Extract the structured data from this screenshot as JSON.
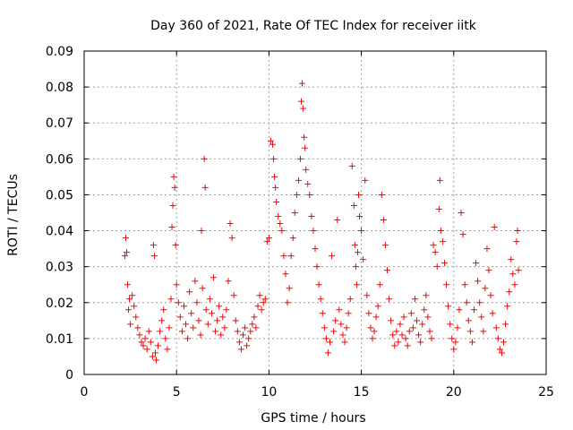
{
  "chart_data": {
    "type": "scatter",
    "title": "Day 360 of 2021, Rate Of TEC Index for receiver iitk",
    "xlabel": "GPS time / hours",
    "ylabel": "ROTI / TECUs",
    "xlim": [
      0,
      25
    ],
    "ylim": [
      0,
      0.09
    ],
    "x_ticks": [
      0,
      5,
      10,
      15,
      20,
      25
    ],
    "x_tick_labels": [
      "0",
      "5",
      "10",
      "15",
      "20",
      "25"
    ],
    "y_ticks": [
      0,
      0.01,
      0.02,
      0.03,
      0.04,
      0.05,
      0.06,
      0.07,
      0.08,
      0.09
    ],
    "y_tick_labels": [
      "0",
      "0.01",
      "0.02",
      "0.03",
      "0.04",
      "0.05",
      "0.06",
      "0.07",
      "0.08",
      "0.09"
    ],
    "grid": true,
    "marker": "plus",
    "color": "#ff0000",
    "series": [
      {
        "points": [
          [
            2.2,
            0.033
          ],
          [
            2.25,
            0.038
          ],
          [
            2.3,
            0.034
          ],
          [
            2.35,
            0.025
          ],
          [
            2.4,
            0.018
          ],
          [
            2.45,
            0.021
          ],
          [
            2.5,
            0.014
          ],
          [
            2.6,
            0.022
          ],
          [
            2.7,
            0.019
          ],
          [
            2.8,
            0.016
          ],
          [
            2.9,
            0.013
          ],
          [
            3.0,
            0.011
          ],
          [
            3.1,
            0.009
          ],
          [
            3.2,
            0.008
          ],
          [
            3.3,
            0.01
          ],
          [
            3.4,
            0.007
          ],
          [
            3.5,
            0.012
          ],
          [
            3.6,
            0.009
          ],
          [
            3.7,
            0.005
          ],
          [
            3.75,
            0.036
          ],
          [
            3.8,
            0.033
          ],
          [
            3.85,
            0.006
          ],
          [
            3.9,
            0.004
          ],
          [
            4.0,
            0.008
          ],
          [
            4.1,
            0.012
          ],
          [
            4.2,
            0.015
          ],
          [
            4.3,
            0.018
          ],
          [
            4.4,
            0.01
          ],
          [
            4.5,
            0.007
          ],
          [
            4.6,
            0.013
          ],
          [
            4.7,
            0.021
          ],
          [
            4.75,
            0.041
          ],
          [
            4.8,
            0.047
          ],
          [
            4.85,
            0.055
          ],
          [
            4.9,
            0.052
          ],
          [
            4.95,
            0.036
          ],
          [
            5.0,
            0.025
          ],
          [
            5.1,
            0.02
          ],
          [
            5.2,
            0.016
          ],
          [
            5.3,
            0.012
          ],
          [
            5.4,
            0.019
          ],
          [
            5.5,
            0.014
          ],
          [
            5.6,
            0.01
          ],
          [
            5.7,
            0.023
          ],
          [
            5.8,
            0.017
          ],
          [
            5.9,
            0.013
          ],
          [
            6.0,
            0.026
          ],
          [
            6.1,
            0.02
          ],
          [
            6.2,
            0.015
          ],
          [
            6.3,
            0.011
          ],
          [
            6.35,
            0.04
          ],
          [
            6.4,
            0.024
          ],
          [
            6.5,
            0.06
          ],
          [
            6.55,
            0.052
          ],
          [
            6.6,
            0.018
          ],
          [
            6.7,
            0.014
          ],
          [
            6.8,
            0.021
          ],
          [
            6.9,
            0.017
          ],
          [
            7.0,
            0.027
          ],
          [
            7.1,
            0.012
          ],
          [
            7.2,
            0.015
          ],
          [
            7.3,
            0.019
          ],
          [
            7.4,
            0.011
          ],
          [
            7.5,
            0.016
          ],
          [
            7.6,
            0.013
          ],
          [
            7.7,
            0.018
          ],
          [
            7.8,
            0.026
          ],
          [
            7.9,
            0.042
          ],
          [
            8.0,
            0.038
          ],
          [
            8.1,
            0.022
          ],
          [
            8.2,
            0.015
          ],
          [
            8.3,
            0.012
          ],
          [
            8.4,
            0.009
          ],
          [
            8.5,
            0.007
          ],
          [
            8.6,
            0.011
          ],
          [
            8.7,
            0.013
          ],
          [
            8.8,
            0.008
          ],
          [
            8.9,
            0.01
          ],
          [
            9.0,
            0.012
          ],
          [
            9.1,
            0.014
          ],
          [
            9.2,
            0.016
          ],
          [
            9.3,
            0.013
          ],
          [
            9.4,
            0.019
          ],
          [
            9.5,
            0.022
          ],
          [
            9.6,
            0.018
          ],
          [
            9.7,
            0.02
          ],
          [
            9.8,
            0.021
          ],
          [
            9.9,
            0.037
          ],
          [
            10.0,
            0.038
          ],
          [
            10.1,
            0.065
          ],
          [
            10.2,
            0.064
          ],
          [
            10.25,
            0.06
          ],
          [
            10.3,
            0.055
          ],
          [
            10.35,
            0.052
          ],
          [
            10.4,
            0.048
          ],
          [
            10.5,
            0.044
          ],
          [
            10.6,
            0.042
          ],
          [
            10.7,
            0.04
          ],
          [
            10.8,
            0.033
          ],
          [
            10.9,
            0.028
          ],
          [
            11.0,
            0.02
          ],
          [
            11.1,
            0.024
          ],
          [
            11.2,
            0.033
          ],
          [
            11.3,
            0.038
          ],
          [
            11.4,
            0.045
          ],
          [
            11.5,
            0.05
          ],
          [
            11.6,
            0.054
          ],
          [
            11.7,
            0.06
          ],
          [
            11.75,
            0.076
          ],
          [
            11.8,
            0.081
          ],
          [
            11.85,
            0.074
          ],
          [
            11.9,
            0.066
          ],
          [
            11.95,
            0.063
          ],
          [
            12.0,
            0.057
          ],
          [
            12.1,
            0.053
          ],
          [
            12.2,
            0.05
          ],
          [
            12.3,
            0.044
          ],
          [
            12.4,
            0.04
          ],
          [
            12.5,
            0.035
          ],
          [
            12.6,
            0.03
          ],
          [
            12.7,
            0.025
          ],
          [
            12.8,
            0.021
          ],
          [
            12.9,
            0.017
          ],
          [
            13.0,
            0.013
          ],
          [
            13.1,
            0.01
          ],
          [
            13.2,
            0.006
          ],
          [
            13.3,
            0.009
          ],
          [
            13.4,
            0.033
          ],
          [
            13.5,
            0.012
          ],
          [
            13.6,
            0.015
          ],
          [
            13.7,
            0.043
          ],
          [
            13.8,
            0.018
          ],
          [
            13.9,
            0.014
          ],
          [
            14.0,
            0.011
          ],
          [
            14.1,
            0.009
          ],
          [
            14.2,
            0.013
          ],
          [
            14.3,
            0.017
          ],
          [
            14.4,
            0.021
          ],
          [
            14.5,
            0.058
          ],
          [
            14.6,
            0.047
          ],
          [
            14.65,
            0.036
          ],
          [
            14.7,
            0.03
          ],
          [
            14.75,
            0.025
          ],
          [
            14.8,
            0.034
          ],
          [
            14.85,
            0.05
          ],
          [
            14.9,
            0.044
          ],
          [
            15.0,
            0.04
          ],
          [
            15.1,
            0.032
          ],
          [
            15.2,
            0.054
          ],
          [
            15.3,
            0.022
          ],
          [
            15.4,
            0.017
          ],
          [
            15.5,
            0.013
          ],
          [
            15.6,
            0.01
          ],
          [
            15.7,
            0.012
          ],
          [
            15.8,
            0.016
          ],
          [
            15.9,
            0.019
          ],
          [
            16.0,
            0.025
          ],
          [
            16.1,
            0.05
          ],
          [
            16.2,
            0.043
          ],
          [
            16.3,
            0.036
          ],
          [
            16.4,
            0.029
          ],
          [
            16.5,
            0.021
          ],
          [
            16.6,
            0.015
          ],
          [
            16.7,
            0.011
          ],
          [
            16.8,
            0.008
          ],
          [
            16.9,
            0.012
          ],
          [
            17.0,
            0.009
          ],
          [
            17.1,
            0.014
          ],
          [
            17.2,
            0.011
          ],
          [
            17.3,
            0.016
          ],
          [
            17.4,
            0.01
          ],
          [
            17.5,
            0.008
          ],
          [
            17.6,
            0.012
          ],
          [
            17.7,
            0.017
          ],
          [
            17.8,
            0.013
          ],
          [
            17.9,
            0.021
          ],
          [
            18.0,
            0.015
          ],
          [
            18.1,
            0.011
          ],
          [
            18.2,
            0.009
          ],
          [
            18.3,
            0.014
          ],
          [
            18.4,
            0.018
          ],
          [
            18.5,
            0.022
          ],
          [
            18.6,
            0.016
          ],
          [
            18.7,
            0.012
          ],
          [
            18.8,
            0.01
          ],
          [
            18.9,
            0.036
          ],
          [
            19.0,
            0.034
          ],
          [
            19.1,
            0.03
          ],
          [
            19.2,
            0.046
          ],
          [
            19.25,
            0.054
          ],
          [
            19.3,
            0.04
          ],
          [
            19.4,
            0.037
          ],
          [
            19.5,
            0.031
          ],
          [
            19.6,
            0.025
          ],
          [
            19.7,
            0.019
          ],
          [
            19.8,
            0.014
          ],
          [
            19.9,
            0.01
          ],
          [
            20.0,
            0.007
          ],
          [
            20.1,
            0.009
          ],
          [
            20.2,
            0.013
          ],
          [
            20.3,
            0.018
          ],
          [
            20.4,
            0.045
          ],
          [
            20.5,
            0.039
          ],
          [
            20.6,
            0.025
          ],
          [
            20.7,
            0.02
          ],
          [
            20.8,
            0.015
          ],
          [
            20.9,
            0.012
          ],
          [
            21.0,
            0.009
          ],
          [
            21.1,
            0.018
          ],
          [
            21.2,
            0.031
          ],
          [
            21.3,
            0.026
          ],
          [
            21.4,
            0.02
          ],
          [
            21.5,
            0.016
          ],
          [
            21.6,
            0.012
          ],
          [
            21.7,
            0.024
          ],
          [
            21.8,
            0.035
          ],
          [
            21.9,
            0.029
          ],
          [
            22.0,
            0.022
          ],
          [
            22.1,
            0.017
          ],
          [
            22.2,
            0.041
          ],
          [
            22.3,
            0.013
          ],
          [
            22.4,
            0.01
          ],
          [
            22.5,
            0.007
          ],
          [
            22.6,
            0.006
          ],
          [
            22.7,
            0.009
          ],
          [
            22.8,
            0.014
          ],
          [
            22.9,
            0.019
          ],
          [
            23.0,
            0.023
          ],
          [
            23.1,
            0.032
          ],
          [
            23.2,
            0.028
          ],
          [
            23.3,
            0.025
          ],
          [
            23.4,
            0.037
          ],
          [
            23.45,
            0.04
          ],
          [
            23.5,
            0.029
          ]
        ]
      }
    ]
  }
}
